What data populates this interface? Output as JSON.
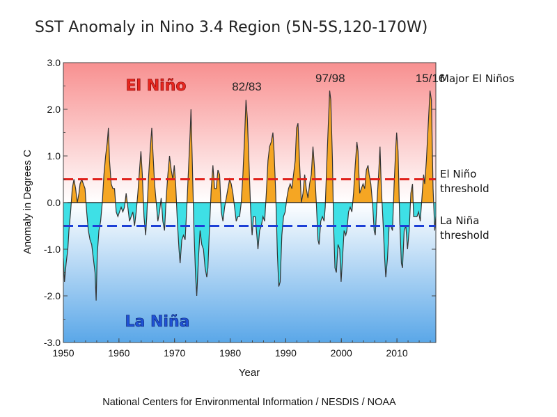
{
  "chart_data": {
    "type": "area",
    "title": "SST Anomaly in Nino 3.4 Region (5N-5S,120-170W)",
    "xlabel": "Year",
    "ylabel": "Anomaly in Degrees C",
    "xlim": [
      1950,
      2017
    ],
    "ylim": [
      -3.0,
      3.0
    ],
    "x_ticks": [
      "1950",
      "1960",
      "1970",
      "1980",
      "1990",
      "2000",
      "2010"
    ],
    "y_ticks": [
      "3.0",
      "2.0",
      "1.0",
      "0.0",
      "-1.0",
      "-2.0",
      "-3.0"
    ],
    "thresholds": [
      {
        "name": "El Niño threshold",
        "value": 0.5,
        "color": "#e0201a"
      },
      {
        "name": "La Niña threshold",
        "value": -0.5,
        "color": "#1c3fd6"
      }
    ],
    "region_labels": {
      "el_nino": "El Niño",
      "la_nina": "La Niña"
    },
    "peak_labels": [
      {
        "text": "82/83",
        "year": 1983.0
      },
      {
        "text": "97/98",
        "year": 1998.0
      },
      {
        "text": "15/16",
        "year": 2016.0
      }
    ],
    "side_labels": {
      "major": "Major El Niños",
      "el_nino_threshold": [
        "El Niño",
        "threshold"
      ],
      "la_nina_threshold": [
        "La Niña",
        "threshold"
      ]
    },
    "series": [
      {
        "name": "Nino 3.4 SST anomaly",
        "colors": {
          "positive": "#f5a623",
          "negative": "#3ee0e6",
          "line": "#333333"
        },
        "points": [
          [
            1950.0,
            -1.2
          ],
          [
            1950.2,
            -1.7
          ],
          [
            1950.5,
            -1.3
          ],
          [
            1950.8,
            -1.0
          ],
          [
            1951.0,
            -0.6
          ],
          [
            1951.3,
            -0.2
          ],
          [
            1951.6,
            0.3
          ],
          [
            1951.9,
            0.5
          ],
          [
            1952.2,
            0.3
          ],
          [
            1952.5,
            0.0
          ],
          [
            1952.8,
            0.2
          ],
          [
            1953.0,
            0.4
          ],
          [
            1953.3,
            0.5
          ],
          [
            1953.6,
            0.4
          ],
          [
            1953.9,
            0.3
          ],
          [
            1954.2,
            -0.2
          ],
          [
            1954.5,
            -0.6
          ],
          [
            1954.8,
            -0.8
          ],
          [
            1955.1,
            -0.9
          ],
          [
            1955.4,
            -1.2
          ],
          [
            1955.7,
            -1.5
          ],
          [
            1955.9,
            -2.1
          ],
          [
            1956.1,
            -1.1
          ],
          [
            1956.4,
            -0.6
          ],
          [
            1956.7,
            -0.4
          ],
          [
            1957.0,
            0.0
          ],
          [
            1957.3,
            0.6
          ],
          [
            1957.6,
            1.0
          ],
          [
            1957.9,
            1.3
          ],
          [
            1958.1,
            1.6
          ],
          [
            1958.3,
            0.9
          ],
          [
            1958.6,
            0.4
          ],
          [
            1958.9,
            0.3
          ],
          [
            1959.2,
            0.3
          ],
          [
            1959.5,
            -0.2
          ],
          [
            1959.8,
            -0.3
          ],
          [
            1960.1,
            -0.2
          ],
          [
            1960.4,
            -0.1
          ],
          [
            1960.7,
            -0.2
          ],
          [
            1961.0,
            -0.1
          ],
          [
            1961.3,
            0.2
          ],
          [
            1961.6,
            -0.1
          ],
          [
            1961.9,
            -0.4
          ],
          [
            1962.2,
            -0.3
          ],
          [
            1962.5,
            -0.2
          ],
          [
            1962.8,
            -0.5
          ],
          [
            1963.1,
            -0.2
          ],
          [
            1963.4,
            0.2
          ],
          [
            1963.7,
            0.7
          ],
          [
            1963.95,
            1.1
          ],
          [
            1964.2,
            0.6
          ],
          [
            1964.5,
            -0.3
          ],
          [
            1964.8,
            -0.7
          ],
          [
            1965.0,
            -0.3
          ],
          [
            1965.3,
            0.5
          ],
          [
            1965.6,
            1.1
          ],
          [
            1965.9,
            1.6
          ],
          [
            1966.1,
            1.1
          ],
          [
            1966.4,
            0.4
          ],
          [
            1966.7,
            0.0
          ],
          [
            1967.0,
            -0.4
          ],
          [
            1967.3,
            -0.2
          ],
          [
            1967.6,
            0.1
          ],
          [
            1967.9,
            -0.4
          ],
          [
            1968.2,
            -0.6
          ],
          [
            1968.5,
            0.1
          ],
          [
            1968.8,
            0.6
          ],
          [
            1969.1,
            1.0
          ],
          [
            1969.4,
            0.7
          ],
          [
            1969.7,
            0.5
          ],
          [
            1969.95,
            0.8
          ],
          [
            1970.2,
            0.4
          ],
          [
            1970.5,
            -0.4
          ],
          [
            1970.8,
            -1.0
          ],
          [
            1971.0,
            -1.3
          ],
          [
            1971.3,
            -0.8
          ],
          [
            1971.6,
            -0.7
          ],
          [
            1971.9,
            -0.8
          ],
          [
            1972.2,
            -0.1
          ],
          [
            1972.5,
            0.7
          ],
          [
            1972.8,
            1.5
          ],
          [
            1972.95,
            2.0
          ],
          [
            1973.2,
            0.8
          ],
          [
            1973.5,
            -0.6
          ],
          [
            1973.8,
            -1.6
          ],
          [
            1974.0,
            -2.0
          ],
          [
            1974.3,
            -1.2
          ],
          [
            1974.6,
            -0.6
          ],
          [
            1974.9,
            -0.9
          ],
          [
            1975.2,
            -1.0
          ],
          [
            1975.5,
            -1.4
          ],
          [
            1975.8,
            -1.6
          ],
          [
            1976.0,
            -1.4
          ],
          [
            1976.3,
            -0.5
          ],
          [
            1976.6,
            0.3
          ],
          [
            1976.9,
            0.8
          ],
          [
            1977.2,
            0.3
          ],
          [
            1977.5,
            0.3
          ],
          [
            1977.8,
            0.7
          ],
          [
            1978.1,
            0.6
          ],
          [
            1978.4,
            -0.2
          ],
          [
            1978.7,
            -0.4
          ],
          [
            1979.0,
            -0.1
          ],
          [
            1979.3,
            0.1
          ],
          [
            1979.6,
            0.3
          ],
          [
            1979.9,
            0.5
          ],
          [
            1980.2,
            0.4
          ],
          [
            1980.5,
            0.2
          ],
          [
            1980.8,
            -0.1
          ],
          [
            1981.1,
            -0.4
          ],
          [
            1981.4,
            -0.3
          ],
          [
            1981.7,
            -0.3
          ],
          [
            1982.0,
            0.0
          ],
          [
            1982.3,
            0.6
          ],
          [
            1982.6,
            1.4
          ],
          [
            1982.85,
            2.2
          ],
          [
            1983.1,
            1.8
          ],
          [
            1983.4,
            0.8
          ],
          [
            1983.7,
            -0.2
          ],
          [
            1983.95,
            -0.7
          ],
          [
            1984.2,
            -0.3
          ],
          [
            1984.5,
            -0.3
          ],
          [
            1984.8,
            -0.7
          ],
          [
            1985.0,
            -1.0
          ],
          [
            1985.3,
            -0.6
          ],
          [
            1985.6,
            -0.5
          ],
          [
            1985.9,
            -0.3
          ],
          [
            1986.2,
            -0.4
          ],
          [
            1986.5,
            0.2
          ],
          [
            1986.8,
            0.9
          ],
          [
            1987.1,
            1.2
          ],
          [
            1987.4,
            1.3
          ],
          [
            1987.7,
            1.5
          ],
          [
            1987.9,
            1.1
          ],
          [
            1988.2,
            0.2
          ],
          [
            1988.5,
            -1.1
          ],
          [
            1988.75,
            -1.8
          ],
          [
            1989.0,
            -1.7
          ],
          [
            1989.3,
            -0.7
          ],
          [
            1989.6,
            -0.3
          ],
          [
            1989.9,
            -0.2
          ],
          [
            1990.2,
            0.1
          ],
          [
            1990.5,
            0.3
          ],
          [
            1990.8,
            0.4
          ],
          [
            1991.1,
            0.3
          ],
          [
            1991.4,
            0.6
          ],
          [
            1991.7,
            0.9
          ],
          [
            1991.95,
            1.6
          ],
          [
            1992.2,
            1.7
          ],
          [
            1992.5,
            0.8
          ],
          [
            1992.8,
            0.0
          ],
          [
            1993.1,
            0.2
          ],
          [
            1993.4,
            0.6
          ],
          [
            1993.7,
            0.3
          ],
          [
            1994.0,
            0.1
          ],
          [
            1994.3,
            0.4
          ],
          [
            1994.6,
            0.6
          ],
          [
            1994.9,
            1.2
          ],
          [
            1995.2,
            0.7
          ],
          [
            1995.5,
            0.0
          ],
          [
            1995.8,
            -0.8
          ],
          [
            1996.0,
            -0.9
          ],
          [
            1996.3,
            -0.4
          ],
          [
            1996.6,
            -0.3
          ],
          [
            1996.9,
            -0.4
          ],
          [
            1997.1,
            -0.1
          ],
          [
            1997.4,
            0.9
          ],
          [
            1997.7,
            1.8
          ],
          [
            1997.9,
            2.4
          ],
          [
            1998.1,
            2.2
          ],
          [
            1998.4,
            0.9
          ],
          [
            1998.6,
            -0.5
          ],
          [
            1998.85,
            -1.4
          ],
          [
            1999.1,
            -1.5
          ],
          [
            1999.4,
            -0.9
          ],
          [
            1999.7,
            -1.0
          ],
          [
            1999.95,
            -1.7
          ],
          [
            2000.2,
            -1.2
          ],
          [
            2000.5,
            -0.6
          ],
          [
            2000.8,
            -0.7
          ],
          [
            2001.0,
            -0.6
          ],
          [
            2001.3,
            -0.2
          ],
          [
            2001.6,
            -0.1
          ],
          [
            2001.9,
            -0.2
          ],
          [
            2002.2,
            0.2
          ],
          [
            2002.5,
            0.8
          ],
          [
            2002.8,
            1.3
          ],
          [
            2003.0,
            1.1
          ],
          [
            2003.3,
            0.2
          ],
          [
            2003.6,
            0.3
          ],
          [
            2003.9,
            0.4
          ],
          [
            2004.2,
            0.3
          ],
          [
            2004.5,
            0.7
          ],
          [
            2004.8,
            0.8
          ],
          [
            2005.0,
            0.6
          ],
          [
            2005.3,
            0.4
          ],
          [
            2005.6,
            0.0
          ],
          [
            2005.9,
            -0.6
          ],
          [
            2006.1,
            -0.7
          ],
          [
            2006.4,
            0.0
          ],
          [
            2006.7,
            0.6
          ],
          [
            2006.95,
            1.2
          ],
          [
            2007.2,
            0.3
          ],
          [
            2007.5,
            -0.4
          ],
          [
            2007.8,
            -1.2
          ],
          [
            2008.0,
            -1.6
          ],
          [
            2008.3,
            -1.2
          ],
          [
            2008.6,
            -0.5
          ],
          [
            2008.9,
            -0.5
          ],
          [
            2009.2,
            -0.6
          ],
          [
            2009.5,
            0.4
          ],
          [
            2009.8,
            1.2
          ],
          [
            2009.95,
            1.5
          ],
          [
            2010.2,
            1.1
          ],
          [
            2010.5,
            -0.4
          ],
          [
            2010.8,
            -1.3
          ],
          [
            2011.0,
            -1.4
          ],
          [
            2011.3,
            -0.6
          ],
          [
            2011.6,
            -0.5
          ],
          [
            2011.9,
            -1.0
          ],
          [
            2012.2,
            -0.6
          ],
          [
            2012.5,
            0.2
          ],
          [
            2012.8,
            0.4
          ],
          [
            2013.0,
            -0.3
          ],
          [
            2013.3,
            -0.3
          ],
          [
            2013.6,
            -0.3
          ],
          [
            2013.9,
            -0.2
          ],
          [
            2014.2,
            -0.4
          ],
          [
            2014.5,
            0.1
          ],
          [
            2014.8,
            0.6
          ],
          [
            2015.0,
            0.4
          ],
          [
            2015.3,
            0.9
          ],
          [
            2015.6,
            1.6
          ],
          [
            2015.95,
            2.4
          ],
          [
            2016.2,
            2.2
          ],
          [
            2016.5,
            0.3
          ],
          [
            2016.8,
            -0.6
          ],
          [
            2017.0,
            -0.3
          ]
        ]
      }
    ]
  },
  "credit": "National Centers for Environmental Information / NESDIS / NOAA"
}
